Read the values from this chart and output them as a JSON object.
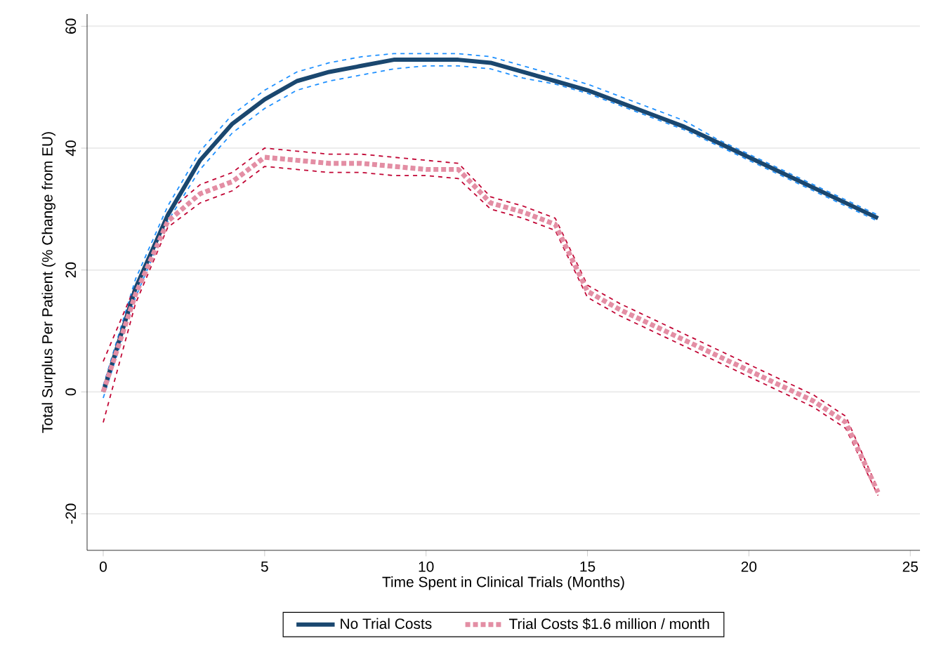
{
  "chart_data": {
    "type": "line",
    "xlabel": "Time Spent in Clinical Trials (Months)",
    "ylabel": "Total Surplus Per Patient (% Change from EU)",
    "x": [
      0,
      1,
      2,
      3,
      4,
      5,
      6,
      7,
      8,
      9,
      10,
      11,
      12,
      13,
      14,
      15,
      16,
      17,
      18,
      19,
      20,
      21,
      22,
      23,
      24
    ],
    "series": [
      {
        "color": "#1e90ff",
        "line_style": "dashed",
        "values": [
          -1,
          15.5,
          28,
          36.5,
          42.5,
          46.5,
          49.5,
          51,
          52,
          53,
          53.5,
          53.5,
          53,
          51.5,
          50.5,
          49,
          47,
          45,
          43,
          40.5,
          38,
          35.5,
          33,
          30.5,
          28
        ]
      },
      {
        "color": "#1e90ff",
        "line_style": "dashed",
        "values": [
          1,
          18.5,
          30.5,
          39.5,
          45.5,
          49.5,
          52.5,
          54,
          55,
          55.5,
          55.5,
          55.5,
          55,
          53.5,
          52,
          50.5,
          48.5,
          46.5,
          44.5,
          41.5,
          39,
          36.5,
          34,
          31.5,
          29
        ]
      },
      {
        "color": "#c10534",
        "line_style": "dashed",
        "values": [
          -5,
          14.5,
          27,
          31,
          33,
          37,
          36.5,
          36,
          36,
          35.5,
          35.5,
          35,
          30,
          28.5,
          26.5,
          15.5,
          12.5,
          10,
          7.5,
          5,
          2.5,
          0,
          -2.5,
          -6,
          -17
        ]
      },
      {
        "color": "#c10534",
        "line_style": "dashed",
        "values": [
          5,
          17.5,
          29.5,
          34,
          36,
          40,
          39.5,
          39,
          39,
          38.5,
          38,
          37.5,
          32,
          30.5,
          28.5,
          17.5,
          14.5,
          12,
          9.5,
          7,
          4.5,
          2,
          -0.5,
          -4,
          -16
        ]
      },
      {
        "name": "No Trial Costs",
        "color": "#1a476f",
        "line_style": "solid",
        "values": [
          0,
          17,
          29,
          38,
          44,
          48,
          51,
          52.5,
          53.5,
          54.5,
          54.5,
          54.5,
          54,
          52.5,
          51,
          49.5,
          47.5,
          45.5,
          43.5,
          41,
          38.5,
          36,
          33.5,
          31,
          28.5
        ]
      },
      {
        "name": "Trial Costs $1.6 million / month",
        "color": "#e38ea4",
        "line_style": "dotted",
        "values": [
          0,
          16,
          28,
          32.5,
          34.5,
          38.5,
          38,
          37.5,
          37.5,
          37,
          36.5,
          36.5,
          31,
          29.5,
          27.5,
          16.5,
          13.5,
          11,
          8.5,
          6,
          3.5,
          1,
          -1.5,
          -5,
          -16.5
        ]
      }
    ],
    "xlim": [
      -0.5,
      25.3
    ],
    "ylim": [
      -26,
      62
    ],
    "xticks": [
      0,
      5,
      10,
      15,
      20,
      25
    ],
    "yticks": [
      -20,
      0,
      20,
      40,
      60
    ],
    "grid": "y",
    "legend": "bottom",
    "marker": "none"
  }
}
